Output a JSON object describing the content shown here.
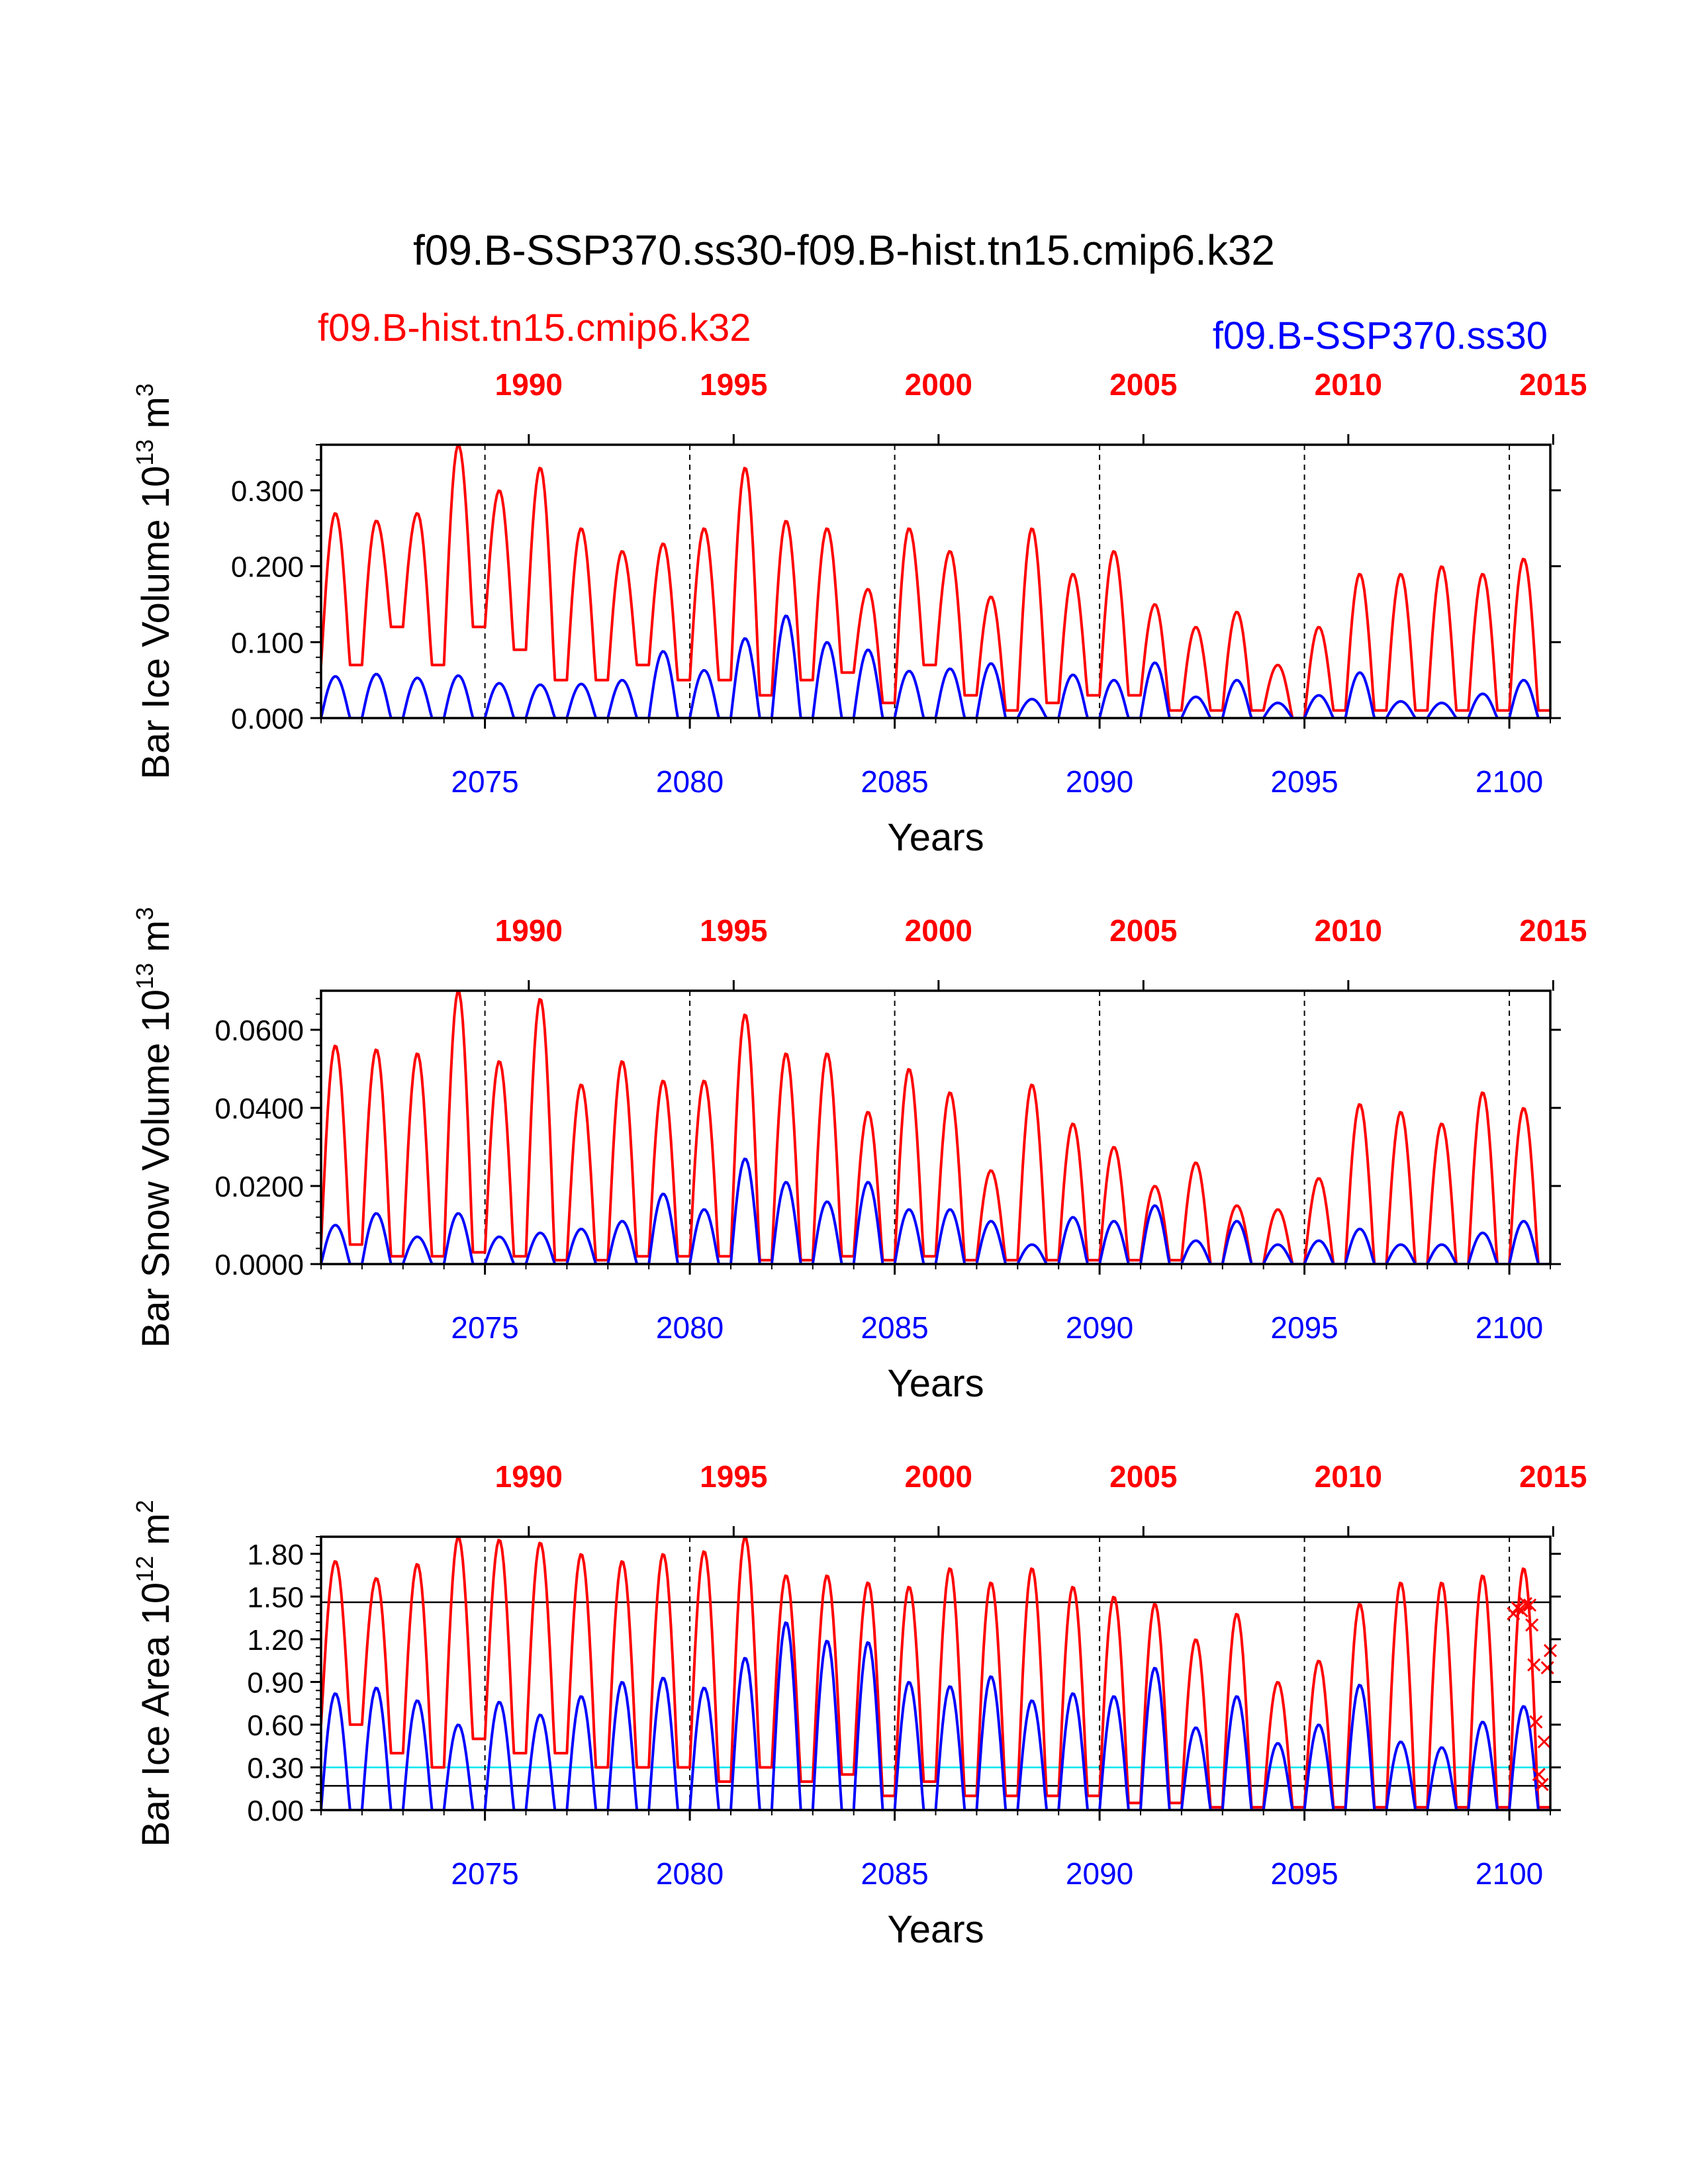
{
  "title": "f09.B-SSP370.ss30-f09.B-hist.tn15.cmip6.k32",
  "legend": {
    "red_case": "f09.B-hist.tn15.cmip6.k32",
    "blue_case": "f09.B-SSP370.ss30"
  },
  "colors": {
    "red": "#ff0000",
    "blue": "#0000ff",
    "cyan": "#00e5ee",
    "axis": "#000000"
  },
  "chart_data": [
    {
      "type": "line",
      "ylabel_main": "Bar Ice Volume 10",
      "ylabel_exp": "13",
      "ylabel_unit": " m",
      "ylabel_unit_exp": "3",
      "xlabel": "Years",
      "xlim": [
        2071,
        2101
      ],
      "ylim": [
        0,
        0.36
      ],
      "yticks": [
        0,
        0.1,
        0.2,
        0.3
      ],
      "ytick_labels": [
        "0.000",
        "0.100",
        "0.200",
        "0.300"
      ],
      "bottom_tick_labels": [
        "2075",
        "2080",
        "2085",
        "2090",
        "2095",
        "2100"
      ],
      "top_tick_labels": [
        "1990",
        "1995",
        "2000",
        "2005",
        "2010",
        "2015"
      ],
      "top_tick_years": [
        2076.07,
        2081.07,
        2086.07,
        2091.07,
        2096.07,
        2101.07
      ],
      "vertical_dashed_at": [
        2075,
        2080,
        2085,
        2090,
        2095,
        2100
      ],
      "horizontal_lines": [],
      "series": [
        {
          "name": "f09.B-hist.tn15.cmip6.k32",
          "color": "red",
          "annual_max": [
            0.27,
            0.26,
            0.27,
            0.36,
            0.3,
            0.33,
            0.25,
            0.22,
            0.23,
            0.25,
            0.33,
            0.26,
            0.25,
            0.17,
            0.25,
            0.22,
            0.16,
            0.25,
            0.19,
            0.22,
            0.15,
            0.12,
            0.14,
            0.07,
            0.12,
            0.19,
            0.19,
            0.2,
            0.19,
            0.21
          ],
          "annual_min": [
            0.07,
            0.12,
            0.07,
            0.12,
            0.09,
            0.05,
            0.05,
            0.07,
            0.05,
            0.05,
            0.03,
            0.05,
            0.06,
            0.02,
            0.07,
            0.03,
            0.01,
            0.02,
            0.03,
            0.03,
            0.01,
            0.01,
            0.01,
            0.0,
            0.01,
            0.01,
            0.01,
            0.01,
            0.01,
            0.01
          ]
        },
        {
          "name": "f09.B-SSP370.ss30",
          "color": "blue",
          "annual_max": [
            0.055,
            0.058,
            0.053,
            0.056,
            0.046,
            0.044,
            0.045,
            0.05,
            0.088,
            0.063,
            0.105,
            0.135,
            0.1,
            0.09,
            0.062,
            0.065,
            0.072,
            0.025,
            0.057,
            0.05,
            0.073,
            0.028,
            0.05,
            0.02,
            0.03,
            0.06,
            0.022,
            0.02,
            0.032,
            0.05
          ],
          "annual_min": [
            0,
            0,
            0,
            0,
            0,
            0,
            0,
            0,
            0,
            0,
            0,
            0,
            0,
            0,
            0,
            0,
            0,
            0,
            0,
            0,
            0,
            0,
            0,
            0,
            0,
            0,
            0,
            0,
            0,
            0
          ]
        }
      ]
    },
    {
      "type": "line",
      "ylabel_main": "Bar Snow Volume 10",
      "ylabel_exp": "13",
      "ylabel_unit": " m",
      "ylabel_unit_exp": "3",
      "xlabel": "Years",
      "xlim": [
        2071,
        2101
      ],
      "ylim": [
        0,
        0.07
      ],
      "yticks": [
        0,
        0.02,
        0.04,
        0.06
      ],
      "ytick_labels": [
        "0.0000",
        "0.0200",
        "0.0400",
        "0.0600"
      ],
      "bottom_tick_labels": [
        "2075",
        "2080",
        "2085",
        "2090",
        "2095",
        "2100"
      ],
      "top_tick_labels": [
        "1990",
        "1995",
        "2000",
        "2005",
        "2010",
        "2015"
      ],
      "top_tick_years": [
        2076.07,
        2081.07,
        2086.07,
        2091.07,
        2096.07,
        2101.07
      ],
      "vertical_dashed_at": [
        2075,
        2080,
        2085,
        2090,
        2095,
        2100
      ],
      "horizontal_lines": [],
      "series": [
        {
          "name": "f09.B-hist.tn15.cmip6.k32",
          "color": "red",
          "annual_max": [
            0.056,
            0.055,
            0.054,
            0.07,
            0.052,
            0.068,
            0.046,
            0.052,
            0.047,
            0.047,
            0.064,
            0.054,
            0.054,
            0.039,
            0.05,
            0.044,
            0.024,
            0.046,
            0.036,
            0.03,
            0.02,
            0.026,
            0.015,
            0.014,
            0.022,
            0.041,
            0.039,
            0.036,
            0.044,
            0.04
          ],
          "annual_min": [
            0.005,
            0.002,
            0.002,
            0.003,
            0.002,
            0.001,
            0.001,
            0.002,
            0.002,
            0.002,
            0.001,
            0.001,
            0.002,
            0.001,
            0.002,
            0.001,
            0.001,
            0.001,
            0.001,
            0.001,
            0.001,
            0.0,
            0.0,
            0.0,
            0.0,
            0.0,
            0.0,
            0.0,
            0.0,
            0.0
          ]
        },
        {
          "name": "f09.B-SSP370.ss30",
          "color": "blue",
          "annual_max": [
            0.01,
            0.013,
            0.007,
            0.013,
            0.007,
            0.008,
            0.009,
            0.011,
            0.018,
            0.014,
            0.027,
            0.021,
            0.016,
            0.021,
            0.014,
            0.014,
            0.011,
            0.005,
            0.012,
            0.011,
            0.015,
            0.006,
            0.011,
            0.005,
            0.006,
            0.009,
            0.005,
            0.005,
            0.008,
            0.011
          ],
          "annual_min": [
            0,
            0,
            0,
            0,
            0,
            0,
            0,
            0,
            0,
            0,
            0,
            0,
            0,
            0,
            0,
            0,
            0,
            0,
            0,
            0,
            0,
            0,
            0,
            0,
            0,
            0,
            0,
            0,
            0,
            0
          ]
        }
      ]
    },
    {
      "type": "line",
      "ylabel_main": "Bar Ice Area 10",
      "ylabel_exp": "12",
      "ylabel_unit": " m",
      "ylabel_unit_exp": "2",
      "xlabel": "Years",
      "xlim": [
        2071,
        2101
      ],
      "ylim": [
        0,
        1.92
      ],
      "yticks": [
        0,
        0.3,
        0.6,
        0.9,
        1.2,
        1.5,
        1.8
      ],
      "ytick_labels": [
        "0.00",
        "0.30",
        "0.60",
        "0.90",
        "1.20",
        "1.50",
        "1.80"
      ],
      "bottom_tick_labels": [
        "2075",
        "2080",
        "2085",
        "2090",
        "2095",
        "2100"
      ],
      "top_tick_labels": [
        "1990",
        "1995",
        "2000",
        "2005",
        "2010",
        "2015"
      ],
      "top_tick_years": [
        2076.07,
        2081.07,
        2086.07,
        2091.07,
        2096.07,
        2101.07
      ],
      "vertical_dashed_at": [
        2075,
        2080,
        2085,
        2090,
        2095,
        2100
      ],
      "horizontal_lines": [
        {
          "y": 1.46,
          "color": "axis"
        },
        {
          "y": 0.3,
          "color": "cyan"
        },
        {
          "y": 0.17,
          "color": "axis"
        }
      ],
      "series": [
        {
          "name": "f09.B-hist.tn15.cmip6.k32",
          "color": "red",
          "annual_max": [
            1.75,
            1.63,
            1.73,
            1.92,
            1.9,
            1.88,
            1.8,
            1.75,
            1.8,
            1.82,
            1.92,
            1.65,
            1.65,
            1.6,
            1.57,
            1.7,
            1.6,
            1.7,
            1.57,
            1.5,
            1.45,
            1.2,
            1.38,
            0.9,
            1.05,
            1.45,
            1.6,
            1.6,
            1.65,
            1.7
          ],
          "annual_min": [
            0.6,
            0.4,
            0.3,
            0.5,
            0.4,
            0.4,
            0.3,
            0.3,
            0.3,
            0.2,
            0.3,
            0.2,
            0.25,
            0.1,
            0.2,
            0.1,
            0.1,
            0.1,
            0.1,
            0.05,
            0.05,
            0.02,
            0.02,
            0.02,
            0.02,
            0.02,
            0.02,
            0.02,
            0.02,
            0.02
          ]
        },
        {
          "name": "f09.B-SSP370.ss30",
          "color": "blue",
          "annual_max": [
            0.82,
            0.86,
            0.77,
            0.6,
            0.76,
            0.67,
            0.8,
            0.9,
            0.93,
            0.86,
            1.07,
            1.32,
            1.19,
            1.18,
            0.9,
            0.87,
            0.94,
            0.77,
            0.82,
            0.8,
            1.0,
            0.58,
            0.8,
            0.47,
            0.6,
            0.88,
            0.48,
            0.44,
            0.62,
            0.73
          ],
          "annual_min": [
            0,
            0,
            0,
            0,
            0,
            0,
            0,
            0,
            0,
            0,
            0,
            0,
            0,
            0,
            0,
            0,
            0,
            0,
            0,
            0,
            0,
            0,
            0,
            0,
            0,
            0,
            0,
            0,
            0,
            0
          ]
        },
        {
          "name": "",
          "type": "scatter",
          "marker": "x",
          "color": "red",
          "points": [
            [
              2100.1,
              1.38
            ],
            [
              2100.2,
              1.42
            ],
            [
              2100.3,
              1.4
            ],
            [
              2100.4,
              1.45
            ],
            [
              2100.5,
              1.44
            ],
            [
              2100.55,
              1.3
            ],
            [
              2100.6,
              1.02
            ],
            [
              2100.65,
              0.62
            ],
            [
              2100.72,
              0.25
            ],
            [
              2100.8,
              0.18
            ],
            [
              2100.85,
              0.48
            ],
            [
              2100.93,
              1.0
            ],
            [
              2101.0,
              1.12
            ]
          ]
        }
      ]
    }
  ]
}
